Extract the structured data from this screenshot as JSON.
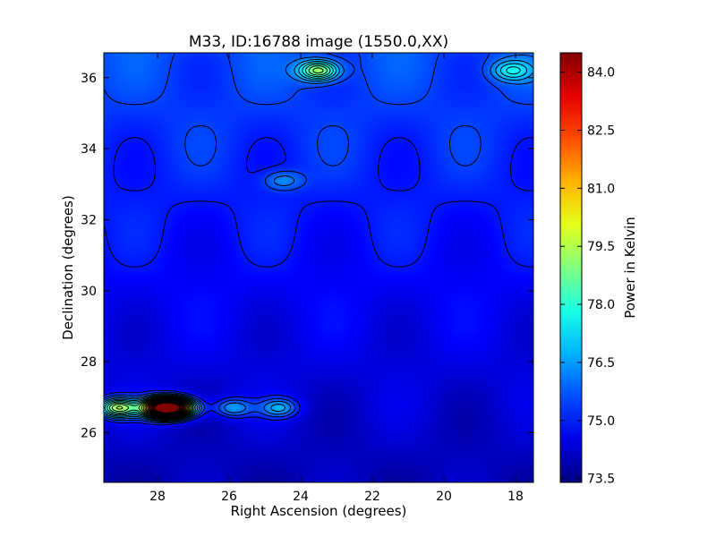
{
  "chart_data": {
    "type": "heatmap",
    "title": "M33, ID:16788 image (1550.0,XX)",
    "xlabel": "Right Ascension (degrees)",
    "ylabel": "Declination (degrees)",
    "xlim": [
      29.5,
      17.5
    ],
    "ylim": [
      24.6,
      36.7
    ],
    "x_ticks": [
      28,
      26,
      24,
      22,
      20,
      18
    ],
    "y_ticks": [
      26,
      28,
      30,
      32,
      34,
      36
    ],
    "colorbar": {
      "label": "Power in Kelvin",
      "range": [
        73.4,
        84.5
      ],
      "ticks": [
        73.5,
        75.0,
        76.5,
        78.0,
        79.5,
        81.0,
        82.5,
        84.0
      ],
      "tick_labels": [
        "73.5",
        "75.0",
        "76.5",
        "78.0",
        "79.5",
        "81.0",
        "82.5",
        "84.0"
      ],
      "colormap": "jet"
    },
    "background": {
      "low_dec": 24.6,
      "low_value": 74.0,
      "high_dec": 36.7,
      "high_value": 75.6
    },
    "sources": [
      {
        "ra": 29.1,
        "dec": 26.7,
        "peak": 80.0
      },
      {
        "ra": 27.9,
        "dec": 26.7,
        "peak": 84.5
      },
      {
        "ra": 27.4,
        "dec": 26.7,
        "peak": 81.5
      },
      {
        "ra": 25.9,
        "dec": 26.7,
        "peak": 77.2
      },
      {
        "ra": 24.6,
        "dec": 26.7,
        "peak": 77.2
      },
      {
        "ra": 23.5,
        "dec": 36.2,
        "peak": 79.0
      },
      {
        "ra": 24.5,
        "dec": 33.1,
        "peak": 76.3
      },
      {
        "ra": 18.1,
        "dec": 36.2,
        "peak": 77.0
      }
    ],
    "contour_interval": 0.5,
    "grid": false,
    "legend": "none"
  }
}
